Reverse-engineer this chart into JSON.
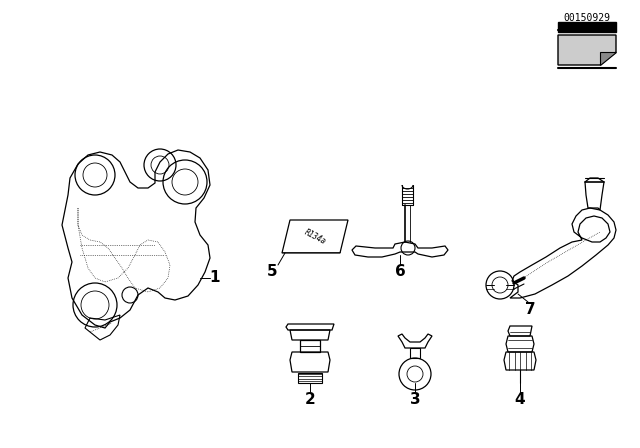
{
  "bg_color": "#ffffff",
  "label_color": "#000000",
  "line_color": "#000000",
  "watermark": "00150929",
  "figsize": [
    6.4,
    4.48
  ],
  "dpi": 100
}
